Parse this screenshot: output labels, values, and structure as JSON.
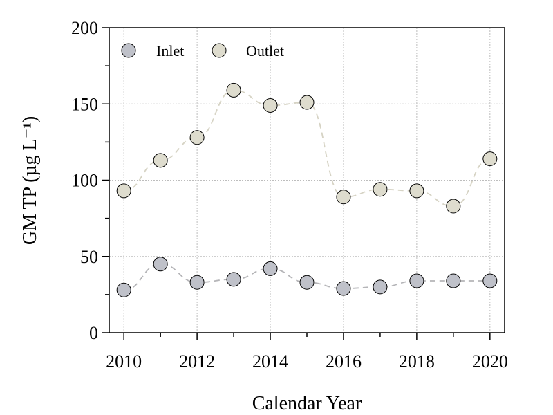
{
  "chart_data": {
    "type": "scatter",
    "x": [
      2010,
      2011,
      2012,
      2013,
      2014,
      2015,
      2016,
      2017,
      2018,
      2019,
      2020
    ],
    "series": [
      {
        "name": "Inlet",
        "values": [
          28,
          45,
          33,
          35,
          42,
          33,
          29,
          30,
          34,
          34,
          34
        ],
        "marker_fill": "#bfc1c9",
        "line_color": "#b5b5b8"
      },
      {
        "name": "Outlet",
        "values": [
          93,
          113,
          128,
          159,
          149,
          151,
          89,
          94,
          93,
          83,
          114
        ],
        "marker_fill": "#dedcce",
        "line_color": "#d6d3c4"
      }
    ],
    "xlabel": "Calendar Year",
    "ylabel": "GM TP (µg L⁻¹)",
    "xlim": [
      2009.6,
      2020.4
    ],
    "ylim": [
      0,
      200
    ],
    "x_ticks": [
      "2010",
      "2012",
      "2014",
      "2016",
      "2018",
      "2020"
    ],
    "x_tick_values": [
      2010,
      2012,
      2014,
      2016,
      2018,
      2020
    ],
    "y_ticks": [
      "0",
      "50",
      "100",
      "150",
      "200"
    ],
    "y_tick_values": [
      0,
      50,
      100,
      150,
      200
    ],
    "grid": true,
    "legend_position": "top-left",
    "connect_points": "dashed"
  }
}
